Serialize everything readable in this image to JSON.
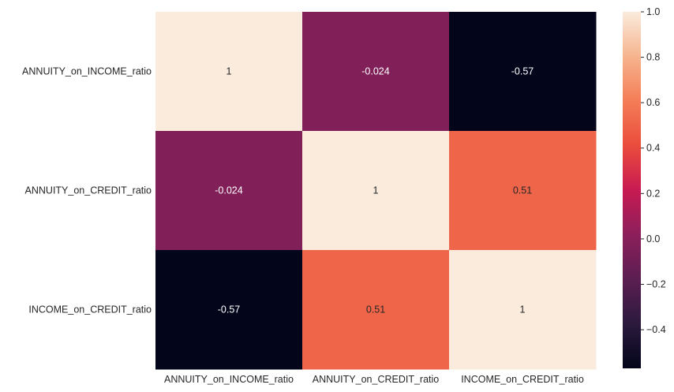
{
  "chart_data": {
    "type": "heatmap",
    "title": "",
    "xlabel": "",
    "ylabel": "",
    "row_labels": [
      "ANNUITY_on_INCOME_ratio",
      "ANNUITY_on_CREDIT_ratio",
      "INCOME_on_CREDIT_ratio"
    ],
    "col_labels": [
      "ANNUITY_on_INCOME_ratio",
      "ANNUITY_on_CREDIT_ratio",
      "INCOME_on_CREDIT_ratio"
    ],
    "values": [
      [
        1,
        -0.024,
        -0.57
      ],
      [
        -0.024,
        1,
        0.51
      ],
      [
        -0.57,
        0.51,
        1
      ]
    ],
    "annotations": [
      [
        "1",
        "-0.024",
        "-0.57"
      ],
      [
        "-0.024",
        "1",
        "0.51"
      ],
      [
        "-0.57",
        "0.51",
        "1"
      ]
    ],
    "colormap": "rocket",
    "vmin": -0.57,
    "vmax": 1,
    "colorbar_ticks": [
      1.0,
      0.8,
      0.6,
      0.4,
      0.2,
      0.0,
      -0.2,
      -0.4
    ],
    "colorbar_tick_labels": [
      "1.0",
      "0.8",
      "0.6",
      "0.4",
      "0.2",
      "0.0",
      "−0.2",
      "−0.4"
    ],
    "grid": false,
    "legend": "colorbar-right"
  }
}
